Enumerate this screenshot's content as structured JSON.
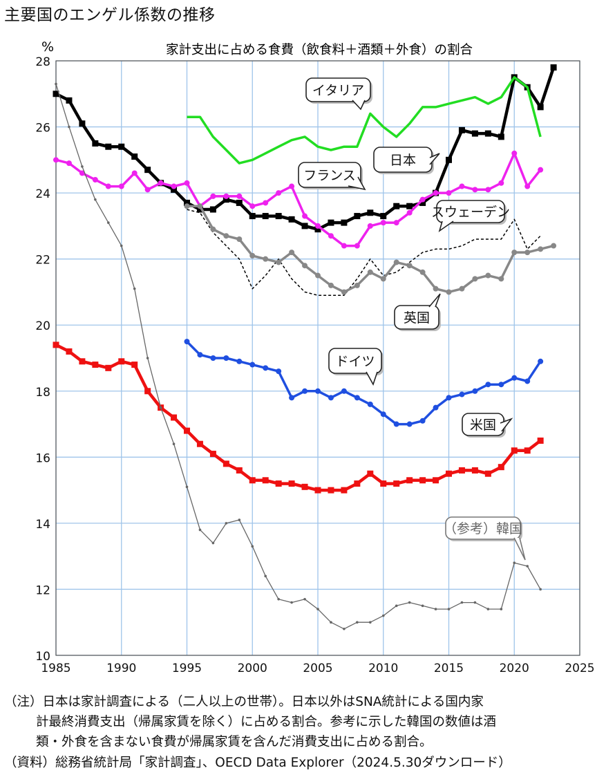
{
  "page": {
    "title": "主要国のエンゲル係数の推移",
    "notes": [
      "（注）日本は家計調査による（二人以上の世帯）。日本以外はSNA統計による国内家",
      "計最終消費支出（帰属家賃を除く）に占める割合。参考に示した韓国の数値は酒",
      "類・外食を含まない食費が帰属家賃を含んだ消費支出に占める割合。",
      "（資料）総務省統計局「家計調査」、OECD Data Explorer（2024.5.30ダウンロード）"
    ]
  },
  "chart_data": {
    "type": "line",
    "title": "家計支出に占める食費（飲食料＋酒類＋外食）の割合",
    "ylabel": "%",
    "xlabel": "",
    "xlim": [
      1985,
      2025
    ],
    "ylim": [
      10,
      28
    ],
    "x_ticks": [
      1985,
      1990,
      1995,
      2000,
      2005,
      2010,
      2015,
      2020,
      2025
    ],
    "y_ticks": [
      10,
      12,
      14,
      16,
      18,
      20,
      22,
      24,
      26,
      28
    ],
    "grid": true,
    "series": [
      {
        "name": "日本",
        "color": "#000000",
        "marker": "square",
        "style": "solid",
        "width": 4.5,
        "x": [
          1985,
          1986,
          1987,
          1988,
          1989,
          1990,
          1991,
          1992,
          1993,
          1994,
          1995,
          1996,
          1997,
          1998,
          1999,
          2000,
          2001,
          2002,
          2003,
          2004,
          2005,
          2006,
          2007,
          2008,
          2009,
          2010,
          2011,
          2012,
          2013,
          2014,
          2015,
          2016,
          2017,
          2018,
          2019,
          2020,
          2021,
          2022,
          2023
        ],
        "y": [
          27.0,
          26.8,
          26.1,
          25.5,
          25.4,
          25.4,
          25.1,
          24.7,
          24.3,
          24.1,
          23.7,
          23.5,
          23.5,
          23.8,
          23.7,
          23.3,
          23.3,
          23.3,
          23.2,
          23.0,
          22.9,
          23.1,
          23.1,
          23.3,
          23.4,
          23.3,
          23.6,
          23.6,
          23.7,
          24.0,
          25.0,
          25.9,
          25.8,
          25.8,
          25.7,
          27.5,
          27.2,
          26.6,
          27.8
        ]
      },
      {
        "name": "イタリア",
        "color": "#22dd22",
        "marker": "none",
        "style": "solid",
        "width": 3.5,
        "x": [
          1995,
          1996,
          1997,
          1998,
          1999,
          2000,
          2001,
          2002,
          2003,
          2004,
          2005,
          2006,
          2007,
          2008,
          2009,
          2010,
          2011,
          2012,
          2013,
          2014,
          2015,
          2016,
          2017,
          2018,
          2019,
          2020,
          2021,
          2022
        ],
        "y": [
          26.3,
          26.3,
          25.7,
          25.3,
          24.9,
          25.0,
          25.2,
          25.4,
          25.6,
          25.7,
          25.4,
          25.3,
          25.4,
          25.4,
          26.4,
          26.0,
          25.7,
          26.1,
          26.6,
          26.6,
          26.7,
          26.8,
          26.9,
          26.7,
          26.9,
          27.5,
          27.2,
          25.7
        ]
      },
      {
        "name": "フランス",
        "color": "#ee22ee",
        "marker": "dot",
        "style": "solid",
        "width": 3.5,
        "x": [
          1985,
          1986,
          1987,
          1988,
          1989,
          1990,
          1991,
          1992,
          1993,
          1994,
          1995,
          1996,
          1997,
          1998,
          1999,
          2000,
          2001,
          2002,
          2003,
          2004,
          2005,
          2006,
          2007,
          2008,
          2009,
          2010,
          2011,
          2012,
          2013,
          2014,
          2015,
          2016,
          2017,
          2018,
          2019,
          2020,
          2021,
          2022
        ],
        "y": [
          25.0,
          24.9,
          24.6,
          24.4,
          24.2,
          24.2,
          24.6,
          24.1,
          24.3,
          24.2,
          24.3,
          23.6,
          23.9,
          23.9,
          23.9,
          23.6,
          23.7,
          24.0,
          24.2,
          23.3,
          23.0,
          22.7,
          22.4,
          22.4,
          23.0,
          23.1,
          23.1,
          23.4,
          23.8,
          24.0,
          24.0,
          24.2,
          24.1,
          24.1,
          24.3,
          25.2,
          24.2,
          24.7
        ]
      },
      {
        "name": "スウェーデン",
        "color": "#000000",
        "marker": "none",
        "style": "dashed",
        "width": 1.5,
        "x": [
          1995,
          1996,
          1997,
          1998,
          1999,
          2000,
          2001,
          2002,
          2003,
          2004,
          2005,
          2006,
          2007,
          2008,
          2009,
          2010,
          2011,
          2012,
          2013,
          2014,
          2015,
          2016,
          2017,
          2018,
          2019,
          2020,
          2021,
          2022
        ],
        "y": [
          23.5,
          23.4,
          22.8,
          22.4,
          22.0,
          21.1,
          21.5,
          22.0,
          21.4,
          21.0,
          20.9,
          20.9,
          20.9,
          21.4,
          22.0,
          21.5,
          21.6,
          21.9,
          22.2,
          22.3,
          22.3,
          22.4,
          22.6,
          22.6,
          22.6,
          23.2,
          22.3,
          22.7
        ]
      },
      {
        "name": "英国",
        "color": "#888888",
        "marker": "dot",
        "style": "solid",
        "width": 3.5,
        "x": [
          1995,
          1996,
          1997,
          1998,
          1999,
          2000,
          2001,
          2002,
          2003,
          2004,
          2005,
          2006,
          2007,
          2008,
          2009,
          2010,
          2011,
          2012,
          2013,
          2014,
          2015,
          2016,
          2017,
          2018,
          2019,
          2020,
          2021,
          2022,
          2023
        ],
        "y": [
          23.6,
          23.6,
          22.9,
          22.7,
          22.6,
          22.1,
          22.0,
          21.9,
          22.2,
          21.8,
          21.5,
          21.2,
          21.0,
          21.2,
          21.6,
          21.4,
          21.9,
          21.8,
          21.6,
          21.1,
          21.0,
          21.1,
          21.4,
          21.5,
          21.4,
          22.2,
          22.2,
          22.3,
          22.4
        ]
      },
      {
        "name": "ドイツ",
        "color": "#1f4fe0",
        "marker": "dot",
        "style": "solid",
        "width": 3.5,
        "x": [
          1995,
          1996,
          1997,
          1998,
          1999,
          2000,
          2001,
          2002,
          2003,
          2004,
          2005,
          2006,
          2007,
          2008,
          2009,
          2010,
          2011,
          2012,
          2013,
          2014,
          2015,
          2016,
          2017,
          2018,
          2019,
          2020,
          2021,
          2022
        ],
        "y": [
          19.5,
          19.1,
          19.0,
          19.0,
          18.9,
          18.8,
          18.7,
          18.6,
          17.8,
          18.0,
          18.0,
          17.8,
          18.0,
          17.8,
          17.6,
          17.3,
          17.0,
          17.0,
          17.1,
          17.5,
          17.8,
          17.9,
          18.0,
          18.2,
          18.2,
          18.4,
          18.3,
          18.9
        ]
      },
      {
        "name": "米国",
        "color": "#ee1111",
        "marker": "square",
        "style": "solid",
        "width": 4.5,
        "x": [
          1985,
          1986,
          1987,
          1988,
          1989,
          1990,
          1991,
          1992,
          1993,
          1994,
          1995,
          1996,
          1997,
          1998,
          1999,
          2000,
          2001,
          2002,
          2003,
          2004,
          2005,
          2006,
          2007,
          2008,
          2009,
          2010,
          2011,
          2012,
          2013,
          2014,
          2015,
          2016,
          2017,
          2018,
          2019,
          2020,
          2021,
          2022
        ],
        "y": [
          19.4,
          19.2,
          18.9,
          18.8,
          18.7,
          18.9,
          18.8,
          18.0,
          17.5,
          17.2,
          16.8,
          16.4,
          16.1,
          15.8,
          15.6,
          15.3,
          15.3,
          15.2,
          15.2,
          15.1,
          15.0,
          15.0,
          15.0,
          15.2,
          15.5,
          15.2,
          15.2,
          15.3,
          15.3,
          15.3,
          15.5,
          15.6,
          15.6,
          15.5,
          15.7,
          16.2,
          16.2,
          16.5
        ]
      },
      {
        "name": "（参考）韓国",
        "color": "#666666",
        "marker": "dot",
        "style": "solid",
        "width": 1.3,
        "x": [
          1985,
          1986,
          1987,
          1988,
          1989,
          1990,
          1991,
          1992,
          1993,
          1994,
          1995,
          1996,
          1997,
          1998,
          1999,
          2000,
          2001,
          2002,
          2003,
          2004,
          2005,
          2006,
          2007,
          2008,
          2009,
          2010,
          2011,
          2012,
          2013,
          2014,
          2015,
          2016,
          2017,
          2018,
          2019,
          2020,
          2021,
          2022
        ],
        "y": [
          27.3,
          26.0,
          24.8,
          23.8,
          23.1,
          22.4,
          21.1,
          19.0,
          17.5,
          16.4,
          15.1,
          13.8,
          13.4,
          14.0,
          14.1,
          13.3,
          12.4,
          11.7,
          11.6,
          11.7,
          11.4,
          11.0,
          10.8,
          11.0,
          11.0,
          11.2,
          11.5,
          11.6,
          11.5,
          11.4,
          11.4,
          11.6,
          11.6,
          11.4,
          11.4,
          12.8,
          12.7,
          12.0
        ]
      }
    ],
    "callouts": [
      {
        "label": "イタリア",
        "series": "イタリア"
      },
      {
        "label": "日本",
        "series": "日本"
      },
      {
        "label": "フランス",
        "series": "フランス"
      },
      {
        "label": "スウェーデン",
        "series": "スウェーデン"
      },
      {
        "label": "英国",
        "series": "英国"
      },
      {
        "label": "ドイツ",
        "series": "ドイツ"
      },
      {
        "label": "米国",
        "series": "米国"
      },
      {
        "label": "（参考）韓国",
        "series": "（参考）韓国"
      }
    ]
  }
}
